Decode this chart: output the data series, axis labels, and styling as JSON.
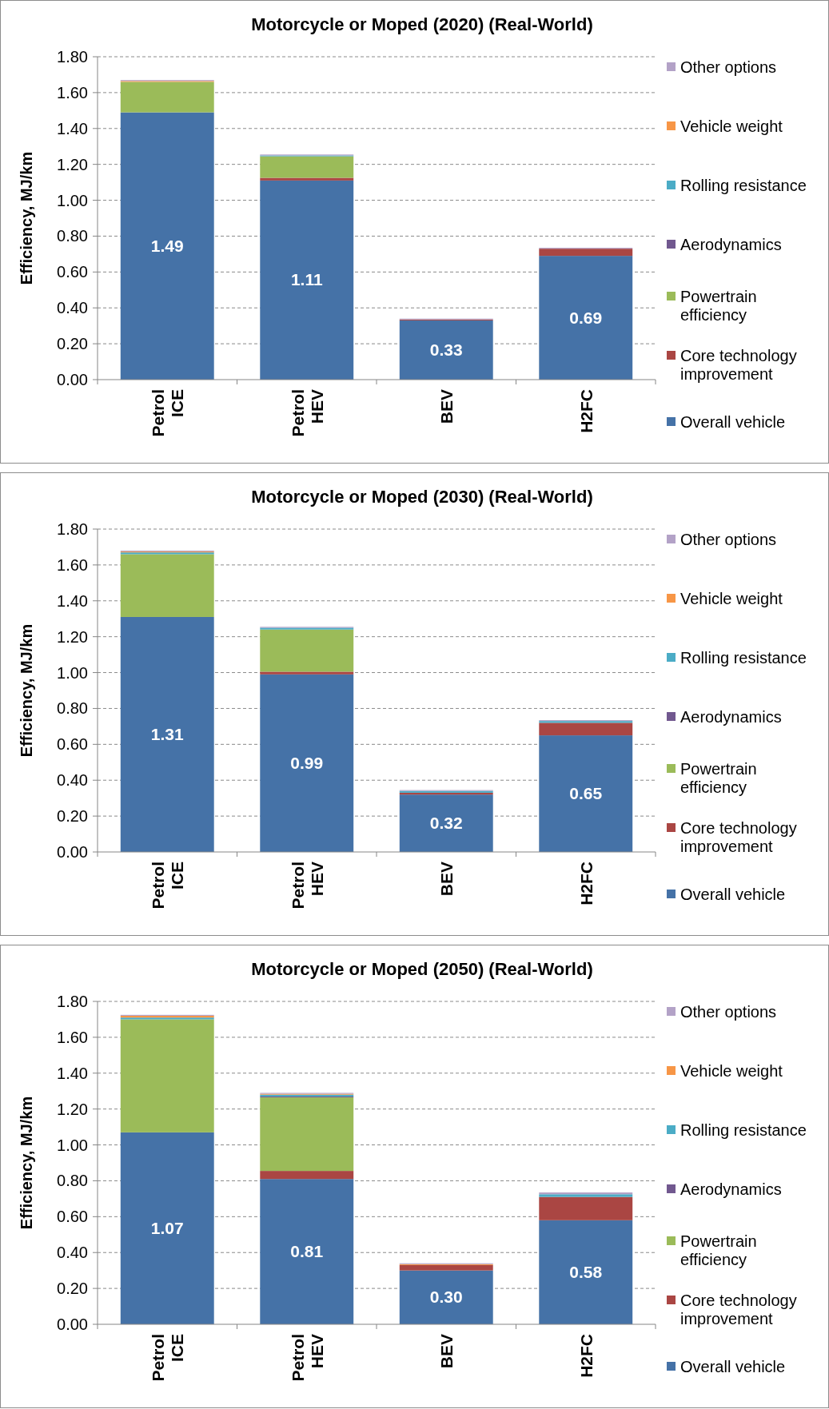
{
  "chart_data": [
    {
      "type": "bar",
      "title": "Motorcycle or Moped (2020) (Real-World)",
      "ylabel": "Efficiency, MJ/km",
      "categories": [
        "Petrol ICE",
        "Petrol HEV",
        "BEV",
        "H2FC"
      ],
      "stacked": true,
      "legend": "right",
      "grid": "y",
      "ylim": [
        0,
        1.8
      ],
      "yticks": [
        {
          "value": 0,
          "label": "0.00"
        },
        {
          "value": 0.2,
          "label": "0.20"
        },
        {
          "value": 0.4,
          "label": "0.40"
        },
        {
          "value": 0.6,
          "label": "0.60"
        },
        {
          "value": 0.8,
          "label": "0.80"
        },
        {
          "value": 1,
          "label": "1.00"
        },
        {
          "value": 1.2,
          "label": "1.20"
        },
        {
          "value": 1.4,
          "label": "1.40"
        },
        {
          "value": 1.6,
          "label": "1.60"
        },
        {
          "value": 1.8,
          "label": "1.80"
        }
      ],
      "series": [
        {
          "name": "Overall vehicle",
          "color": "#4572a7",
          "values": [
            1.49,
            1.11,
            0.33,
            0.69
          ],
          "value_labels": [
            "1.49",
            "1.11",
            "0.33",
            "0.69"
          ]
        },
        {
          "name": "Core technology improvement",
          "color": "#aa4643",
          "values": [
            0,
            0.015,
            0.005,
            0.04
          ]
        },
        {
          "name": "Powertrain efficiency",
          "color": "#9bbb59",
          "values": [
            0.17,
            0.12,
            0,
            0
          ]
        },
        {
          "name": "Aerodynamics",
          "color": "#71588f",
          "values": [
            0,
            0,
            0,
            0
          ]
        },
        {
          "name": "Rolling resistance",
          "color": "#4bacc6",
          "values": [
            0,
            0.005,
            0,
            0
          ]
        },
        {
          "name": "Vehicle weight",
          "color": "#f79646",
          "values": [
            0.005,
            0,
            0,
            0
          ]
        },
        {
          "name": "Other options",
          "color": "#b3a2c7",
          "values": [
            0.005,
            0.005,
            0.005,
            0.005
          ]
        }
      ]
    },
    {
      "type": "bar",
      "title": "Motorcycle or Moped (2030) (Real-World)",
      "ylabel": "Efficiency, MJ/km",
      "categories": [
        "Petrol ICE",
        "Petrol HEV",
        "BEV",
        "H2FC"
      ],
      "stacked": true,
      "legend": "right",
      "grid": "y",
      "ylim": [
        0,
        1.8
      ],
      "yticks": [
        {
          "value": 0,
          "label": "0.00"
        },
        {
          "value": 0.2,
          "label": "0.20"
        },
        {
          "value": 0.4,
          "label": "0.40"
        },
        {
          "value": 0.6,
          "label": "0.60"
        },
        {
          "value": 0.8,
          "label": "0.80"
        },
        {
          "value": 1,
          "label": "1.00"
        },
        {
          "value": 1.2,
          "label": "1.20"
        },
        {
          "value": 1.4,
          "label": "1.40"
        },
        {
          "value": 1.6,
          "label": "1.60"
        },
        {
          "value": 1.8,
          "label": "1.80"
        }
      ],
      "series": [
        {
          "name": "Overall vehicle",
          "color": "#4572a7",
          "values": [
            1.31,
            0.99,
            0.32,
            0.65
          ],
          "value_labels": [
            "1.31",
            "0.99",
            "0.32",
            "0.65"
          ]
        },
        {
          "name": "Core technology improvement",
          "color": "#aa4643",
          "values": [
            0,
            0.015,
            0.01,
            0.07
          ]
        },
        {
          "name": "Powertrain efficiency",
          "color": "#9bbb59",
          "values": [
            0.35,
            0.235,
            0,
            0
          ]
        },
        {
          "name": "Aerodynamics",
          "color": "#71588f",
          "values": [
            0,
            0,
            0,
            0
          ]
        },
        {
          "name": "Rolling resistance",
          "color": "#4bacc6",
          "values": [
            0.01,
            0.01,
            0.01,
            0.01
          ]
        },
        {
          "name": "Vehicle weight",
          "color": "#f79646",
          "values": [
            0.005,
            0,
            0,
            0
          ]
        },
        {
          "name": "Other options",
          "color": "#b3a2c7",
          "values": [
            0.005,
            0.005,
            0.005,
            0.005
          ]
        }
      ]
    },
    {
      "type": "bar",
      "title": "Motorcycle or Moped (2050) (Real-World)",
      "ylabel": "Efficiency, MJ/km",
      "categories": [
        "Petrol ICE",
        "Petrol HEV",
        "BEV",
        "H2FC"
      ],
      "stacked": true,
      "legend": "right",
      "grid": "y",
      "ylim": [
        0,
        1.8
      ],
      "yticks": [
        {
          "value": 0,
          "label": "0.00"
        },
        {
          "value": 0.2,
          "label": "0.20"
        },
        {
          "value": 0.4,
          "label": "0.40"
        },
        {
          "value": 0.6,
          "label": "0.60"
        },
        {
          "value": 0.8,
          "label": "0.80"
        },
        {
          "value": 1,
          "label": "1.00"
        },
        {
          "value": 1.2,
          "label": "1.20"
        },
        {
          "value": 1.4,
          "label": "1.40"
        },
        {
          "value": 1.6,
          "label": "1.60"
        },
        {
          "value": 1.8,
          "label": "1.80"
        }
      ],
      "series": [
        {
          "name": "Overall vehicle",
          "color": "#4572a7",
          "values": [
            1.07,
            0.81,
            0.3,
            0.58
          ],
          "value_labels": [
            "1.07",
            "0.81",
            "0.30",
            "0.58"
          ]
        },
        {
          "name": "Core technology improvement",
          "color": "#aa4643",
          "values": [
            0,
            0.045,
            0.03,
            0.13
          ]
        },
        {
          "name": "Powertrain efficiency",
          "color": "#9bbb59",
          "values": [
            0.63,
            0.41,
            0,
            0
          ]
        },
        {
          "name": "Aerodynamics",
          "color": "#71588f",
          "values": [
            0,
            0.005,
            0,
            0
          ]
        },
        {
          "name": "Rolling resistance",
          "color": "#4bacc6",
          "values": [
            0.01,
            0.01,
            0,
            0.015
          ]
        },
        {
          "name": "Vehicle weight",
          "color": "#f79646",
          "values": [
            0.01,
            0.005,
            0.005,
            0
          ]
        },
        {
          "name": "Other options",
          "color": "#b3a2c7",
          "values": [
            0.005,
            0.005,
            0.005,
            0.01
          ]
        }
      ]
    }
  ]
}
